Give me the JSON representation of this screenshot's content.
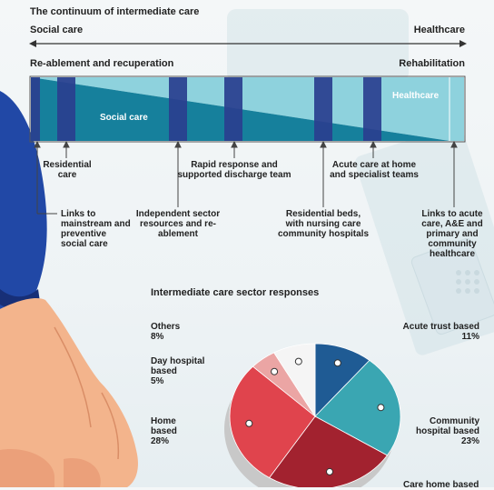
{
  "chart_data": [
    {
      "type": "diagram",
      "title": "The continuum of intermediate care",
      "axis_left": "Social care",
      "axis_right": "Healthcare",
      "sub_left": "Re-ablement and recuperation",
      "sub_right": "Rehabilitation",
      "band_bottom_label": "Social care",
      "band_top_label": "Healthcare",
      "labels_upper": [
        "Residential care",
        "Rapid response and supported discharge team",
        "Acute care at home and specialist teams"
      ],
      "labels_lower": [
        "Links to mainstream and preventive social care",
        "Independent sector resources and re-ablement",
        "Residential beds, with nursing care community hospitals",
        "Links to acute care, A&E and primary and community healthcare"
      ]
    },
    {
      "type": "pie",
      "title": "Intermediate care sector responses",
      "unit": "%",
      "slices": [
        {
          "name": "Acute trust based",
          "value": 11,
          "pct": "11%",
          "color": "#1f5b94"
        },
        {
          "name": "Community hospital based",
          "value": 23,
          "pct": "23%",
          "color": "#3aa6b2"
        },
        {
          "name": "Care home based",
          "value": 25,
          "pct": "",
          "color": "#a2222f"
        },
        {
          "name": "Home based",
          "value": 28,
          "pct": "28%",
          "color": "#e0444d"
        },
        {
          "name": "Day hospital based",
          "value": 5,
          "pct": "5%",
          "color": "#eba5a4"
        },
        {
          "name": "Others",
          "value": 8,
          "pct": "8%",
          "color": "#f5f5f5"
        }
      ]
    }
  ],
  "colors": {
    "band_dark": "#2a3f8f",
    "band_teal": "#16809c",
    "band_light": "#8ed2dd",
    "sleeve": "#2148a6",
    "skin": "#f3b48c"
  },
  "icons": [
    "arrow-icon"
  ]
}
